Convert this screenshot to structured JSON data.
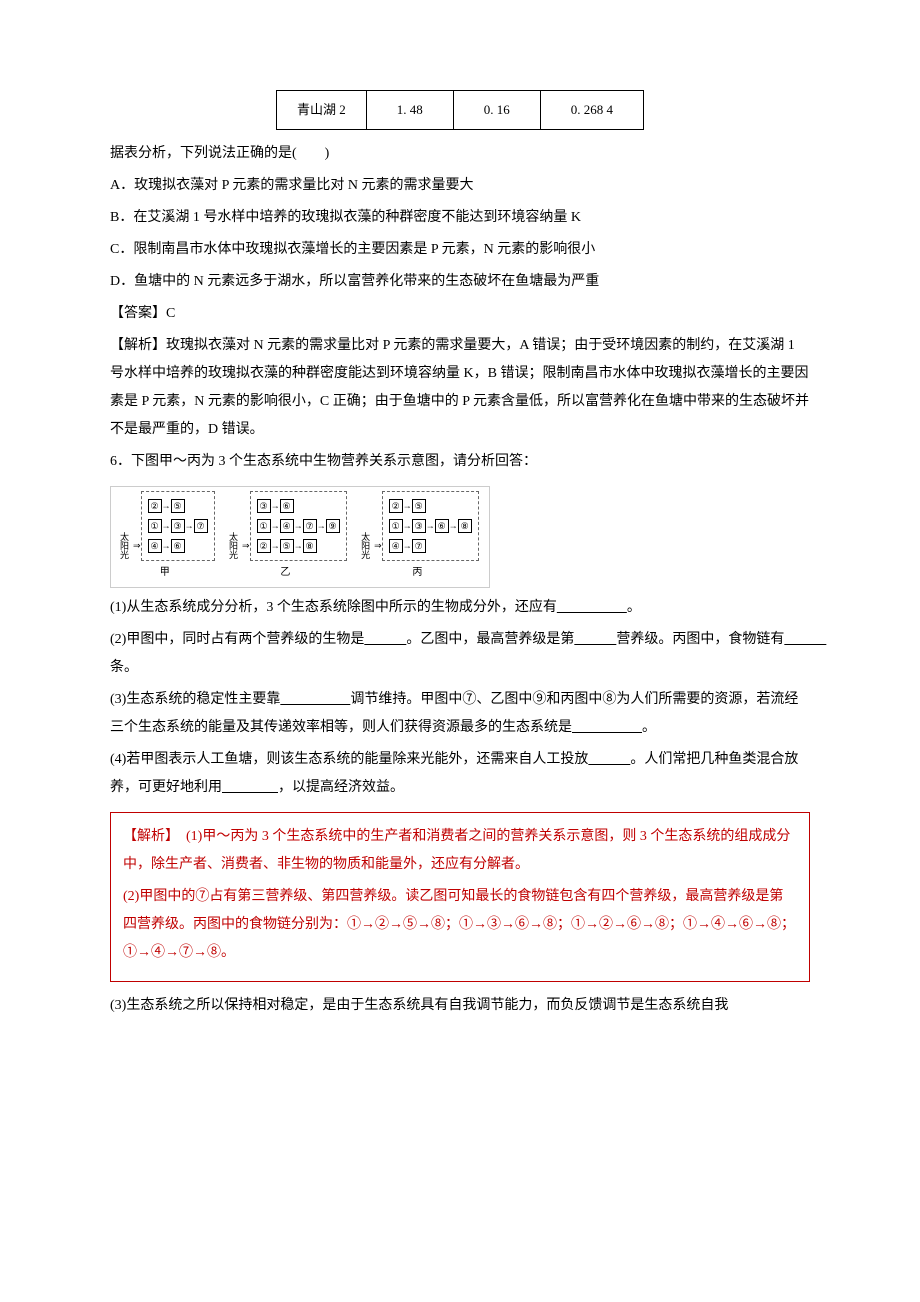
{
  "table": {
    "row": [
      "青山湖 2",
      "1. 48",
      "0. 16",
      "0. 268 4"
    ]
  },
  "q5": {
    "stem": "据表分析，下列说法正确的是(　　)",
    "optA": "A．玫瑰拟衣藻对 P 元素的需求量比对 N 元素的需求量要大",
    "optB": "B．在艾溪湖 1 号水样中培养的玫瑰拟衣藻的种群密度不能达到环境容纳量 K",
    "optC": "C．限制南昌市水体中玫瑰拟衣藻增长的主要因素是 P 元素，N 元素的影响很小",
    "optD": "D．鱼塘中的 N 元素远多于湖水，所以富营养化带来的生态破坏在鱼塘最为严重",
    "answerLabel": "【答案】C",
    "explain": "【解析】玫瑰拟衣藻对 N 元素的需求量比对 P 元素的需求量要大，A 错误；由于受环境因素的制约，在艾溪湖 1 号水样中培养的玫瑰拟衣藻的种群密度能达到环境容纳量 K，B 错误；限制南昌市水体中玫瑰拟衣藻增长的主要因素是 P 元素，N 元素的影响很小，C 正确；由于鱼塘中的 P 元素含量低，所以富营养化在鱼塘中带来的生态破坏并不是最严重的，D 错误。"
  },
  "q6": {
    "stem": "6．下图甲～丙为 3 个生态系统中生物营养关系示意图，请分析回答：",
    "sunlight": "太阳光",
    "panel_jia": "甲",
    "panel_yi": "乙",
    "panel_bing": "丙",
    "sub1a": "(1)从生态系统成分分析，3 个生态系统除图中所示的生物成分外，还应有",
    "sub1b": "。",
    "sub2a": "(2)甲图中，同时占有两个营养级的生物是",
    "sub2b": "。乙图中，最高营养级是第",
    "sub2c": "营养级。丙图中，食物链有",
    "sub2d": "条。",
    "sub3a": "(3)生态系统的稳定性主要靠",
    "sub3b": "调节维持。甲图中⑦、乙图中⑨和丙图中⑧为人们所需要的资源，若流经三个生态系统的能量及其传递效率相等，则人们获得资源最多的生态系统是",
    "sub3c": "。",
    "sub4a": "(4)若甲图表示人工鱼塘，则该生态系统的能量除来光能外，还需来自人工投放",
    "sub4b": "。人们常把几种鱼类混合放养，可更好地利用",
    "sub4c": "，以提高经济效益。",
    "redbox": {
      "p1": "【解析】　(1)甲～丙为 3 个生态系统中的生产者和消费者之间的营养关系示意图，则 3 个生态系统的组成成分中，除生产者、消费者、非生物的物质和能量外，还应有分解者。",
      "p2": "(2)甲图中的⑦占有第三营养级、第四营养级。读乙图可知最长的食物链包含有四个营养级，最高营养级是第四营养级。丙图中的食物链分别为：①→②→⑤→⑧；①→③→⑥→⑧；①→②→⑥→⑧；①→④→⑥→⑧；①→④→⑦→⑧。"
    },
    "after": " (3)生态系统之所以保持相对稳定，是由于生态系统具有自我调节能力，而负反馈调节是生态系统自我"
  },
  "blanks": {
    "long": "　　　　　",
    "short": "　　　",
    "med": "　　　　"
  }
}
